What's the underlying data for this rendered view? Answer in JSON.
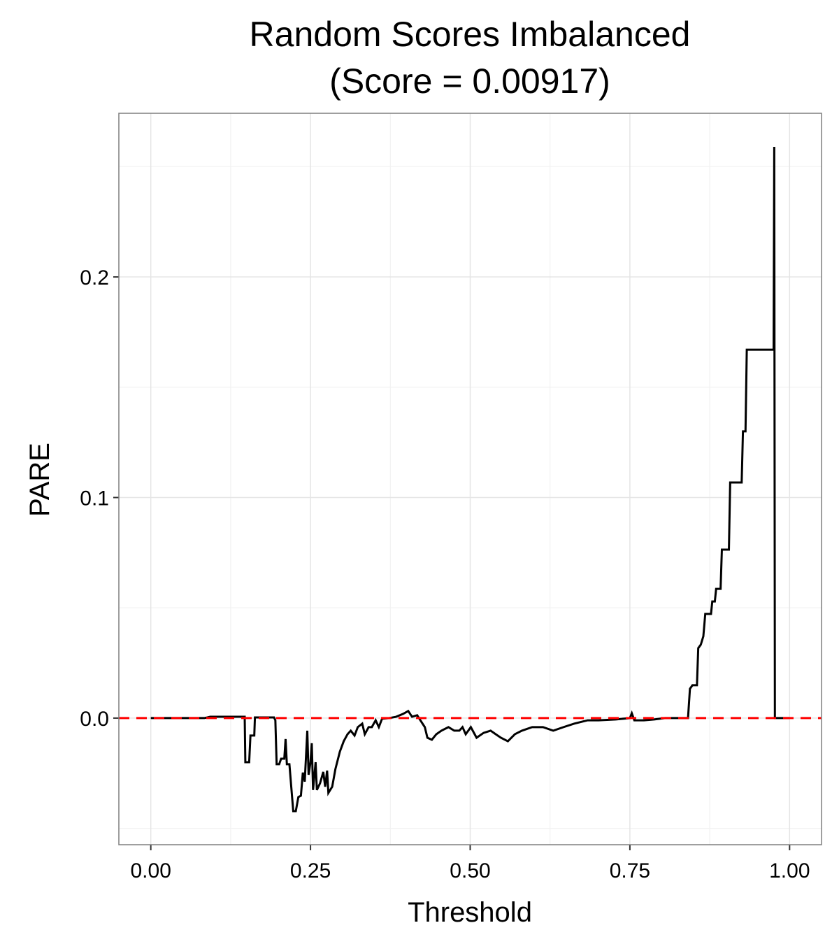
{
  "chart_data": {
    "type": "line",
    "title": "Random Scores Imbalanced",
    "subtitle": "(Score = 0.00917)",
    "x_label": "Threshold",
    "y_label": "PARE",
    "xlim": [
      -0.05,
      1.05
    ],
    "ylim": [
      -0.0574,
      0.2742
    ],
    "xticks": [
      {
        "value": 0,
        "label": "0.00"
      },
      {
        "value": 0.25,
        "label": "0.25"
      },
      {
        "value": 0.5,
        "label": "0.50"
      },
      {
        "value": 0.75,
        "label": "0.75"
      },
      {
        "value": 1,
        "label": "1.00"
      }
    ],
    "yticks": [
      {
        "value": 0,
        "label": "0.0"
      },
      0.1,
      0.2
    ],
    "x_minor_grid": [
      0.125,
      0.375,
      0.625,
      0.875
    ],
    "y_minor_grid": [
      -0.05,
      0.05,
      0.15,
      0.25
    ],
    "grid": true,
    "reference_line": {
      "y": 0,
      "color": "#ff0000",
      "dashed": true
    },
    "series": [
      {
        "color": "#000000",
        "x": [
          0,
          0.084,
          0.093,
          0.144,
          0.147,
          0.148,
          0.154,
          0.156,
          0.162,
          0.163,
          0.193,
          0.195,
          0.197,
          0.201,
          0.204,
          0.209,
          0.211,
          0.213,
          0.217,
          0.223,
          0.227,
          0.231,
          0.235,
          0.238,
          0.241,
          0.245,
          0.247,
          0.25,
          0.252,
          0.254,
          0.258,
          0.26,
          0.265,
          0.27,
          0.273,
          0.276,
          0.278,
          0.284,
          0.289,
          0.296,
          0.302,
          0.308,
          0.313,
          0.319,
          0.324,
          0.331,
          0.335,
          0.341,
          0.346,
          0.352,
          0.357,
          0.362,
          0.373,
          0.384,
          0.395,
          0.403,
          0.409,
          0.417,
          0.422,
          0.429,
          0.433,
          0.44,
          0.447,
          0.455,
          0.466,
          0.475,
          0.483,
          0.488,
          0.493,
          0.501,
          0.51,
          0.521,
          0.532,
          0.54,
          0.548,
          0.559,
          0.57,
          0.581,
          0.597,
          0.614,
          0.63,
          0.646,
          0.663,
          0.684,
          0.701,
          0.728,
          0.75,
          0.753,
          0.757,
          0.772,
          0.788,
          0.805,
          0.841,
          0.844,
          0.848,
          0.855,
          0.857,
          0.861,
          0.865,
          0.868,
          0.877,
          0.879,
          0.883,
          0.885,
          0.892,
          0.894,
          0.905,
          0.907,
          0.925,
          0.927,
          0.931,
          0.933,
          0.975,
          0.976,
          0.977,
          1
        ],
        "values": [
          0,
          0,
          0.0006,
          0.0006,
          0.0006,
          -0.02,
          -0.02,
          -0.0079,
          -0.0079,
          0.0003,
          0.0003,
          -0.001,
          -0.0209,
          -0.0209,
          -0.0184,
          -0.0184,
          -0.0095,
          -0.0209,
          -0.0209,
          -0.0422,
          -0.0422,
          -0.0358,
          -0.0352,
          -0.0247,
          -0.0288,
          -0.0057,
          -0.0257,
          -0.02,
          -0.0114,
          -0.0326,
          -0.02,
          -0.0326,
          -0.0295,
          -0.0244,
          -0.0311,
          -0.0238,
          -0.0339,
          -0.0311,
          -0.0231,
          -0.0152,
          -0.0105,
          -0.0073,
          -0.0057,
          -0.0079,
          -0.0041,
          -0.0025,
          -0.0073,
          -0.0041,
          -0.0041,
          -0.001,
          -0.0041,
          -0.0003,
          0,
          0.0006,
          0.0019,
          0.0032,
          0.0006,
          0.0013,
          -0.001,
          -0.0041,
          -0.0089,
          -0.0098,
          -0.0073,
          -0.0057,
          -0.0041,
          -0.0057,
          -0.0057,
          -0.0041,
          -0.0073,
          -0.0041,
          -0.0089,
          -0.0067,
          -0.0057,
          -0.0073,
          -0.0089,
          -0.0105,
          -0.0073,
          -0.0057,
          -0.0041,
          -0.0041,
          -0.0057,
          -0.0041,
          -0.0025,
          -0.001,
          -0.001,
          -0.0006,
          0,
          0.0022,
          -0.001,
          -0.001,
          -0.0006,
          0,
          0,
          0.0133,
          0.0149,
          0.0149,
          0.0317,
          0.0333,
          0.0371,
          0.0472,
          0.0472,
          0.0529,
          0.0529,
          0.0586,
          0.0586,
          0.0764,
          0.0764,
          0.1068,
          0.1068,
          0.13,
          0.13,
          0.167,
          0.167,
          0.259,
          0,
          0
        ]
      }
    ]
  }
}
